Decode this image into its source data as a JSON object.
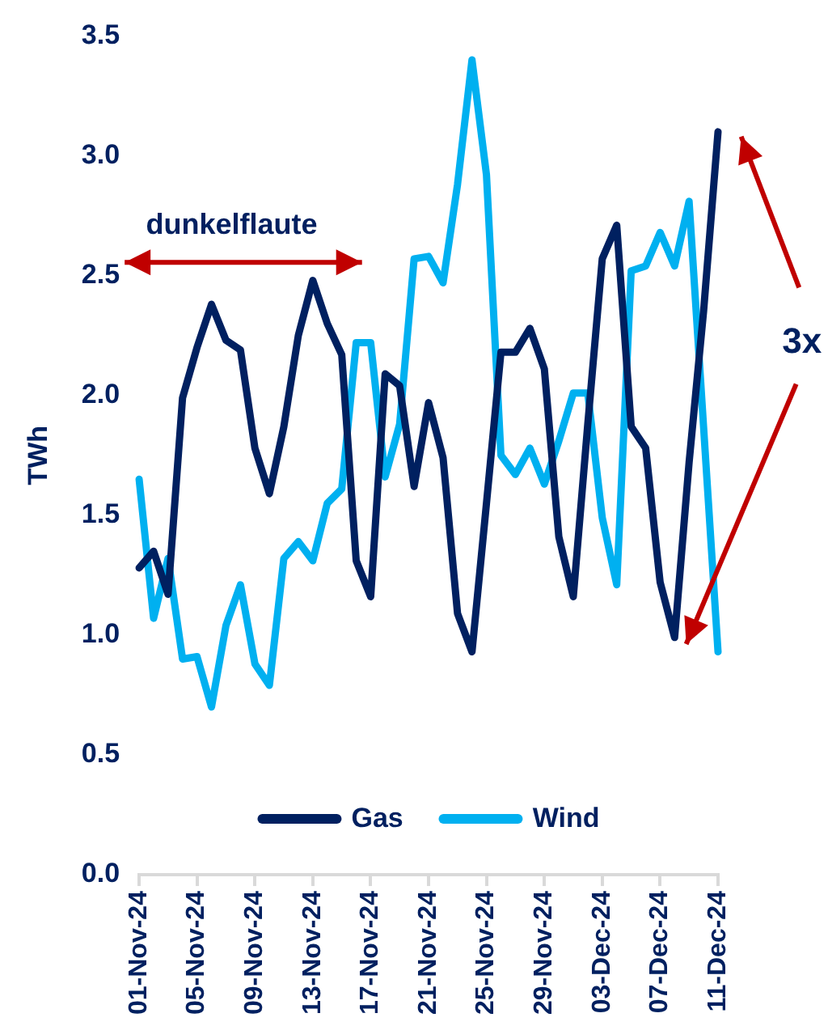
{
  "chart_data": {
    "type": "line",
    "ylabel": "TWh",
    "annotations": [
      "dunkelflaute",
      "3x"
    ],
    "x": [
      "--11-01",
      "--11-02",
      "--11-03",
      "--11-04",
      "--11-05",
      "--11-06",
      "--11-07",
      "--11-08",
      "--11-09",
      "--11-10",
      "--11-11",
      "--11-12",
      "--11-13",
      "--11-14",
      "--11-15",
      "--11-16",
      "--11-17",
      "--11-18",
      "--11-19",
      "--11-20",
      "--11-21",
      "--11-22",
      "--11-23",
      "--11-24",
      "--11-25",
      "--11-26",
      "--11-27",
      "--11-28",
      "--11-29",
      "--11-30",
      "--12-01",
      "--12-02",
      "--12-03",
      "--12-04",
      "--12-05",
      "--12-06",
      "--12-07",
      "--12-08",
      "--12-09",
      "--12-10",
      "--12-11"
    ],
    "series": [
      {
        "name": "Gas",
        "color": "#002060",
        "values": [
          1.28,
          1.35,
          1.17,
          1.99,
          2.2,
          2.38,
          2.23,
          2.19,
          1.78,
          1.59,
          1.87,
          2.25,
          2.48,
          2.3,
          2.17,
          1.31,
          1.16,
          2.09,
          2.04,
          1.62,
          1.97,
          1.74,
          1.09,
          0.93,
          1.55,
          2.18,
          2.18,
          2.28,
          2.11,
          1.41,
          1.16,
          1.88,
          2.57,
          2.71,
          1.87,
          1.78,
          1.22,
          0.99,
          1.72,
          2.35,
          3.1
        ]
      },
      {
        "name": "Wind",
        "color": "#00b0f0",
        "values": [
          1.65,
          1.07,
          1.32,
          0.9,
          0.91,
          0.7,
          1.04,
          1.21,
          0.88,
          0.79,
          1.32,
          1.39,
          1.31,
          1.55,
          1.61,
          2.22,
          2.22,
          1.66,
          1.88,
          2.57,
          2.58,
          2.47,
          2.88,
          3.4,
          2.92,
          1.75,
          1.67,
          1.78,
          1.63,
          1.81,
          2.01,
          2.01,
          1.49,
          1.21,
          2.52,
          2.54,
          2.68,
          2.54,
          2.81,
          1.87,
          0.93
        ]
      }
    ],
    "xlim": [
      "--11-01",
      "--12-11"
    ],
    "xticks": [
      {
        "value": "--11-01",
        "label": "01-Nov-24"
      },
      {
        "value": "--11-05",
        "label": "05-Nov-24"
      },
      {
        "value": "--11-09",
        "label": "09-Nov-24"
      },
      {
        "value": "--11-13",
        "label": "13-Nov-24"
      },
      {
        "value": "--11-17",
        "label": "17-Nov-24"
      },
      {
        "value": "--11-21",
        "label": "21-Nov-24"
      },
      {
        "value": "--11-25",
        "label": "25-Nov-24"
      },
      {
        "value": "--11-29",
        "label": "29-Nov-24"
      },
      {
        "value": "--12-03",
        "label": "03-Dec-24"
      },
      {
        "value": "--12-07",
        "label": "07-Dec-24"
      },
      {
        "value": "--12-11",
        "label": "11-Dec-24"
      }
    ],
    "ylim": [
      0,
      3.5
    ],
    "yticks": [
      {
        "value": 0,
        "label": "0.0"
      },
      {
        "value": 0.5,
        "label": "0.5"
      },
      {
        "value": 1,
        "label": "1.0"
      },
      {
        "value": 1.5,
        "label": "1.5"
      },
      {
        "value": 2,
        "label": "2.0"
      },
      {
        "value": 2.5,
        "label": "2.5"
      },
      {
        "value": 3,
        "label": "3.0"
      },
      {
        "value": 3.5,
        "label": "3.5"
      }
    ],
    "grid": false,
    "legend": "bottom",
    "marker": "none",
    "line_style": "solid"
  }
}
